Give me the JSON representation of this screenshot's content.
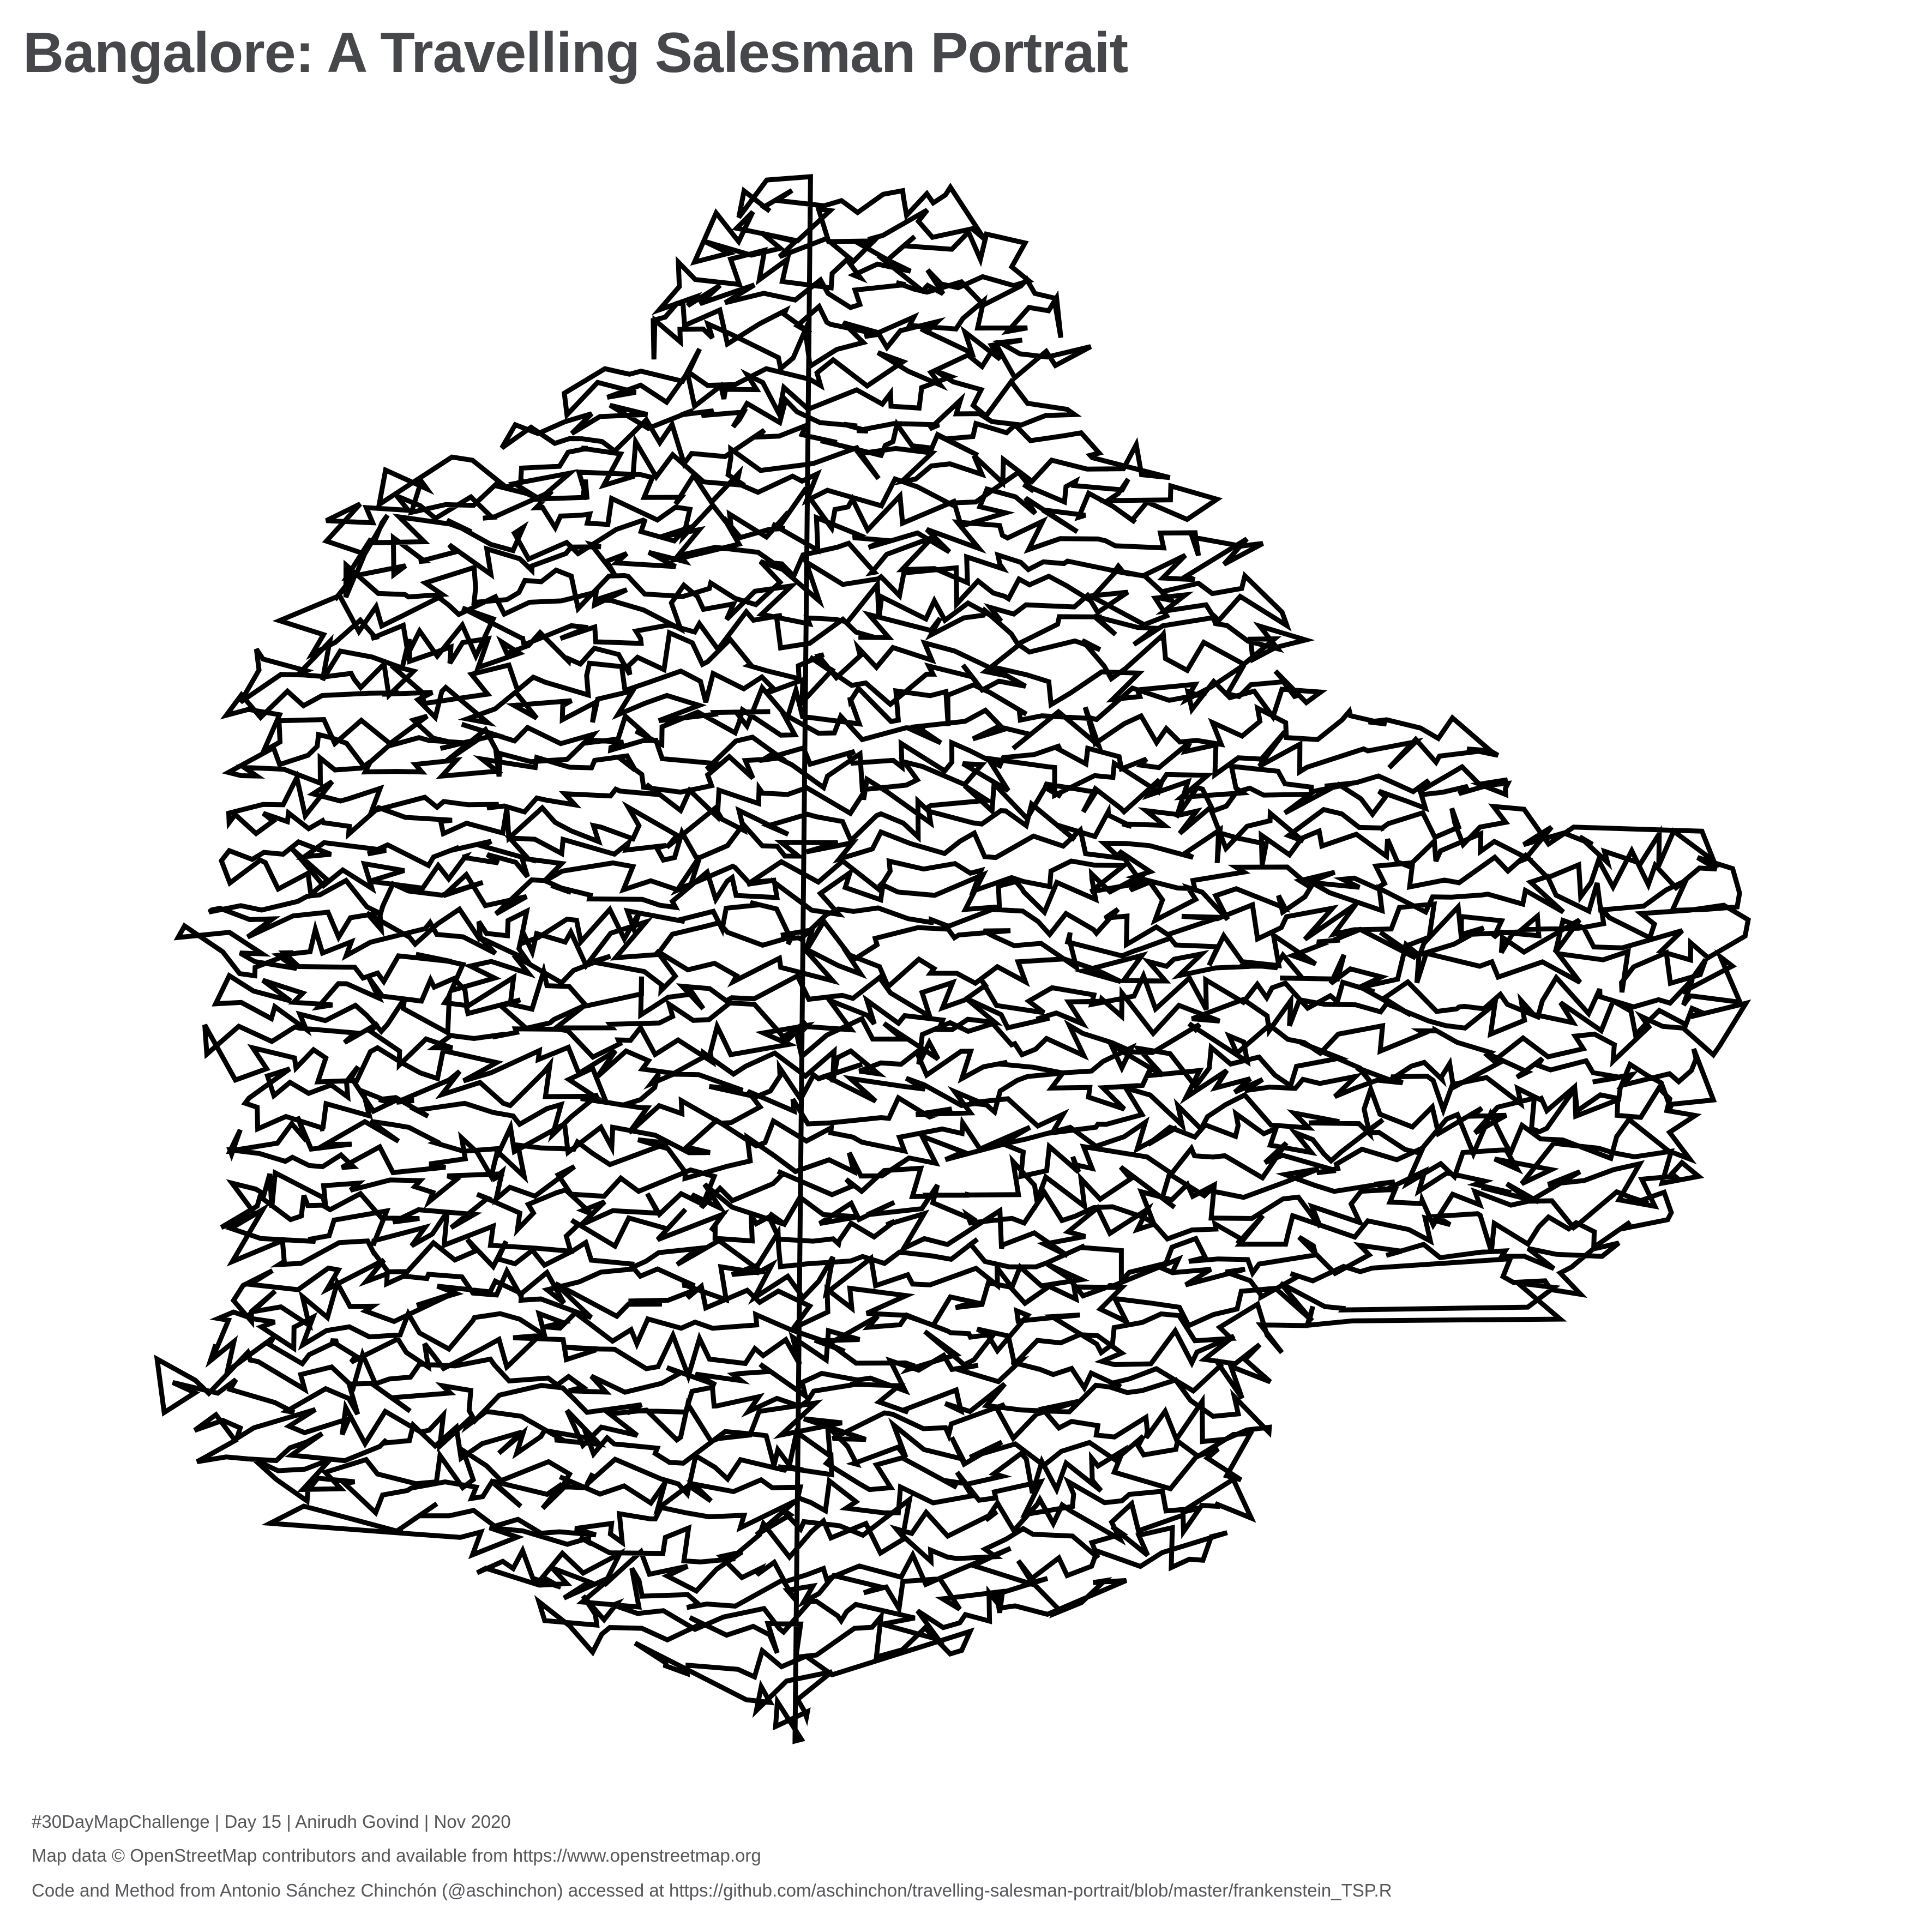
{
  "title": "Bangalore: A Travelling Salesman Portrait",
  "captions": {
    "line1": "#30DayMapChallenge | Day 15 | Anirudh Govind | Nov 2020",
    "line2": "Map data © OpenStreetMap contributors and available from https://www.openstreetmap.org",
    "line3": "Code and Method from Antonio Sánchez Chinchón (@aschinchon) accessed at https://github.com/aschinchon/travelling-salesman-portrait/blob/master/frankenstein_TSP.R"
  },
  "colors": {
    "background": "#ffffff",
    "route_stroke": "#000000",
    "title_text": "#45474b",
    "caption_text": "#55575b"
  },
  "map": {
    "feature": "travelling-salesman-route",
    "style": "single continuous black line tour"
  }
}
